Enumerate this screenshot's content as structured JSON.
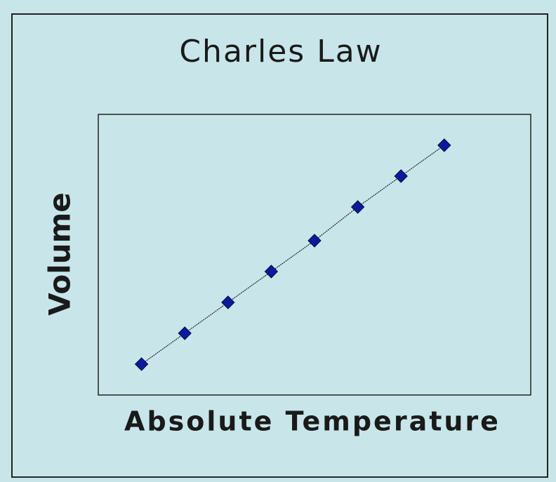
{
  "chart_data": {
    "type": "line",
    "title": "Charles Law",
    "x_label": "Absolute Temperature",
    "y_label": "Volume",
    "x": [
      1,
      2,
      3,
      4,
      5,
      6,
      7,
      8
    ],
    "values": [
      1.1,
      2.2,
      3.3,
      4.4,
      5.5,
      6.7,
      7.8,
      8.9
    ],
    "xlim": [
      0,
      10
    ],
    "ylim": [
      0,
      10
    ],
    "color": "#0b1a9c",
    "line_color": "#222222",
    "grid": false
  }
}
